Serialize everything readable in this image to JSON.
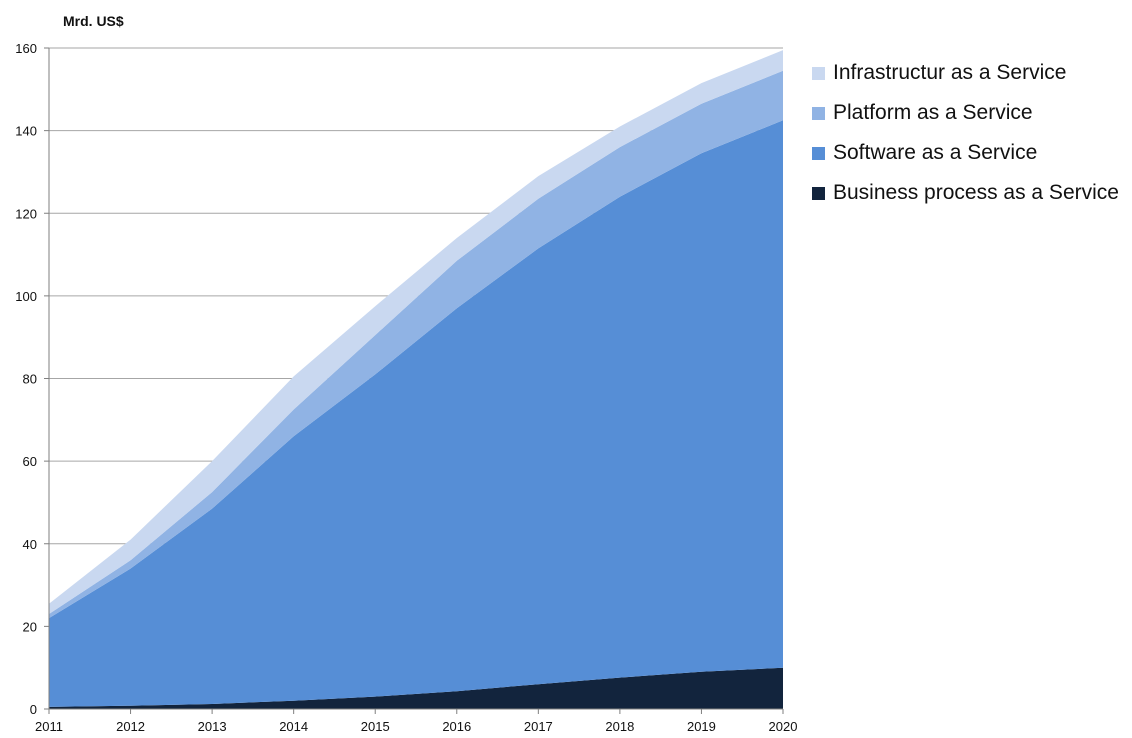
{
  "chart_data": {
    "type": "area",
    "stacked": true,
    "unit_label": "Mrd. US$",
    "x": [
      2011,
      2012,
      2013,
      2014,
      2015,
      2016,
      2017,
      2018,
      2019,
      2020
    ],
    "ylim": [
      0,
      160
    ],
    "yticks": [
      0,
      20,
      40,
      60,
      80,
      100,
      120,
      140,
      160
    ],
    "grid": true,
    "legend_position": "right",
    "series": [
      {
        "name": "Business process as a Service",
        "color": "#12243d",
        "values": [
          0.5,
          0.8,
          1.2,
          2.0,
          3.0,
          4.3,
          6.0,
          7.6,
          9.0,
          10.0
        ]
      },
      {
        "name": "Software as a Service",
        "color": "#568ed6",
        "values": [
          21.5,
          33.2,
          47.3,
          64.0,
          78.0,
          92.7,
          105.5,
          116.4,
          125.5,
          132.5
        ]
      },
      {
        "name": "Platform as a Service",
        "color": "#90b3e4",
        "values": [
          1.0,
          2.0,
          4.0,
          6.5,
          9.5,
          11.5,
          12.0,
          12.0,
          12.0,
          12.0
        ]
      },
      {
        "name": "Infrastructur as a Service",
        "color": "#c9d8f0",
        "values": [
          2.5,
          5.0,
          7.5,
          8.0,
          7.0,
          5.5,
          5.5,
          5.0,
          5.0,
          5.0
        ]
      }
    ]
  }
}
